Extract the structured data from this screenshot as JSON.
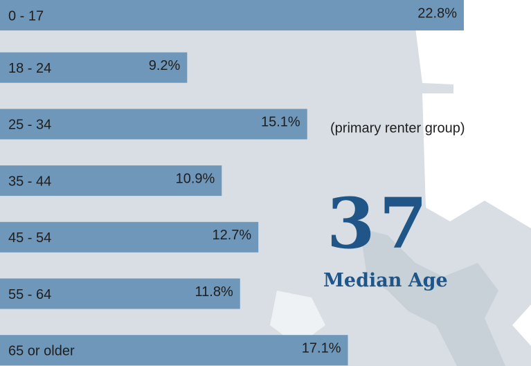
{
  "chart_data": {
    "type": "bar",
    "orientation": "horizontal",
    "categories": [
      "0 - 17",
      "18 - 24",
      "25 - 34",
      "35 - 44",
      "45 - 54",
      "55 - 64",
      "65 or older"
    ],
    "values": [
      22.8,
      9.2,
      15.1,
      10.9,
      12.7,
      11.8,
      17.1
    ],
    "value_labels": [
      "22.8%",
      "9.2%",
      "15.1%",
      "10.9%",
      "12.7%",
      "11.8%",
      "17.1%"
    ],
    "color": "#6f97b9",
    "annotation": "(primary renter group)",
    "median_age": "37",
    "median_age_label": "Median Age"
  }
}
